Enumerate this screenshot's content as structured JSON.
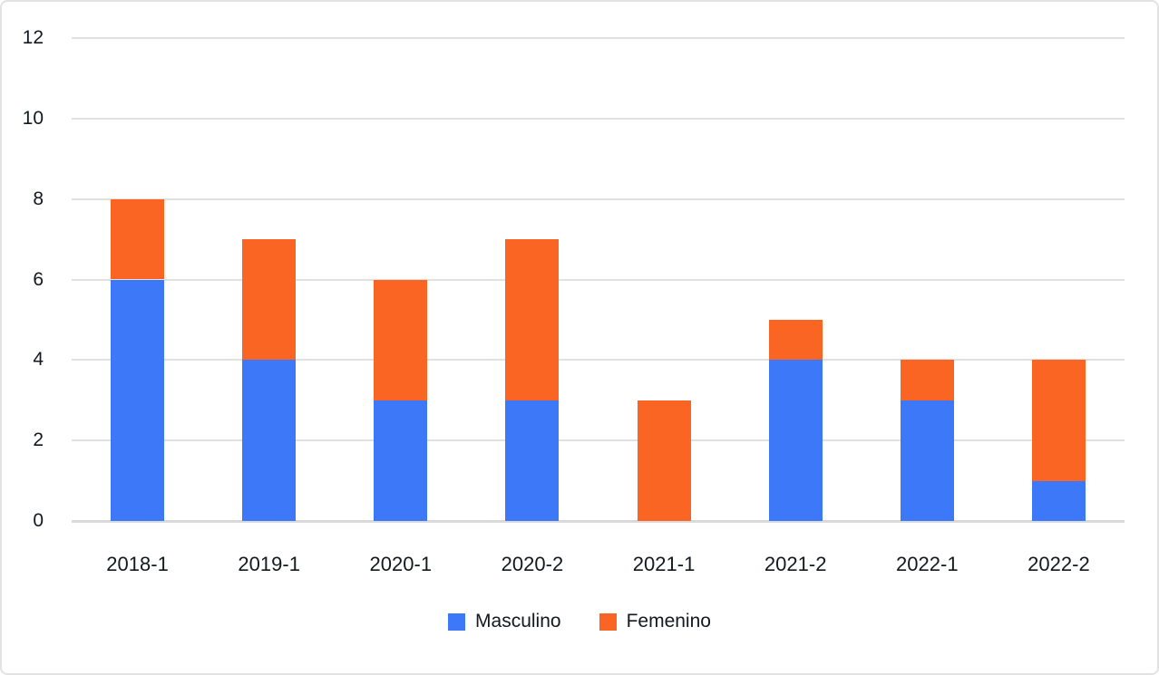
{
  "chart_data": {
    "type": "bar",
    "stacked": true,
    "title": "",
    "xlabel": "",
    "ylabel": "",
    "categories": [
      "2018-1",
      "2019-1",
      "2020-1",
      "2020-2",
      "2021-1",
      "2021-2",
      "2022-1",
      "2022-2"
    ],
    "series": [
      {
        "name": "Masculino",
        "color": "#3c78f7",
        "values": [
          6,
          4,
          3,
          3,
          0,
          4,
          3,
          1
        ]
      },
      {
        "name": "Femenino",
        "color": "#fb6524",
        "values": [
          2,
          3,
          3,
          4,
          3,
          1,
          1,
          3
        ]
      }
    ],
    "ylim": [
      0,
      12
    ],
    "yticks": [
      0,
      2,
      4,
      6,
      8,
      10,
      12
    ],
    "grid": "horizontal",
    "legend_position": "bottom-center"
  },
  "theme": {
    "background": "#ffffff",
    "card_border_color": "#e2e2e2",
    "gridline_color": "#e0e0e0",
    "axis_line_color": "#d9d9d9",
    "text_color": "#14181f"
  }
}
